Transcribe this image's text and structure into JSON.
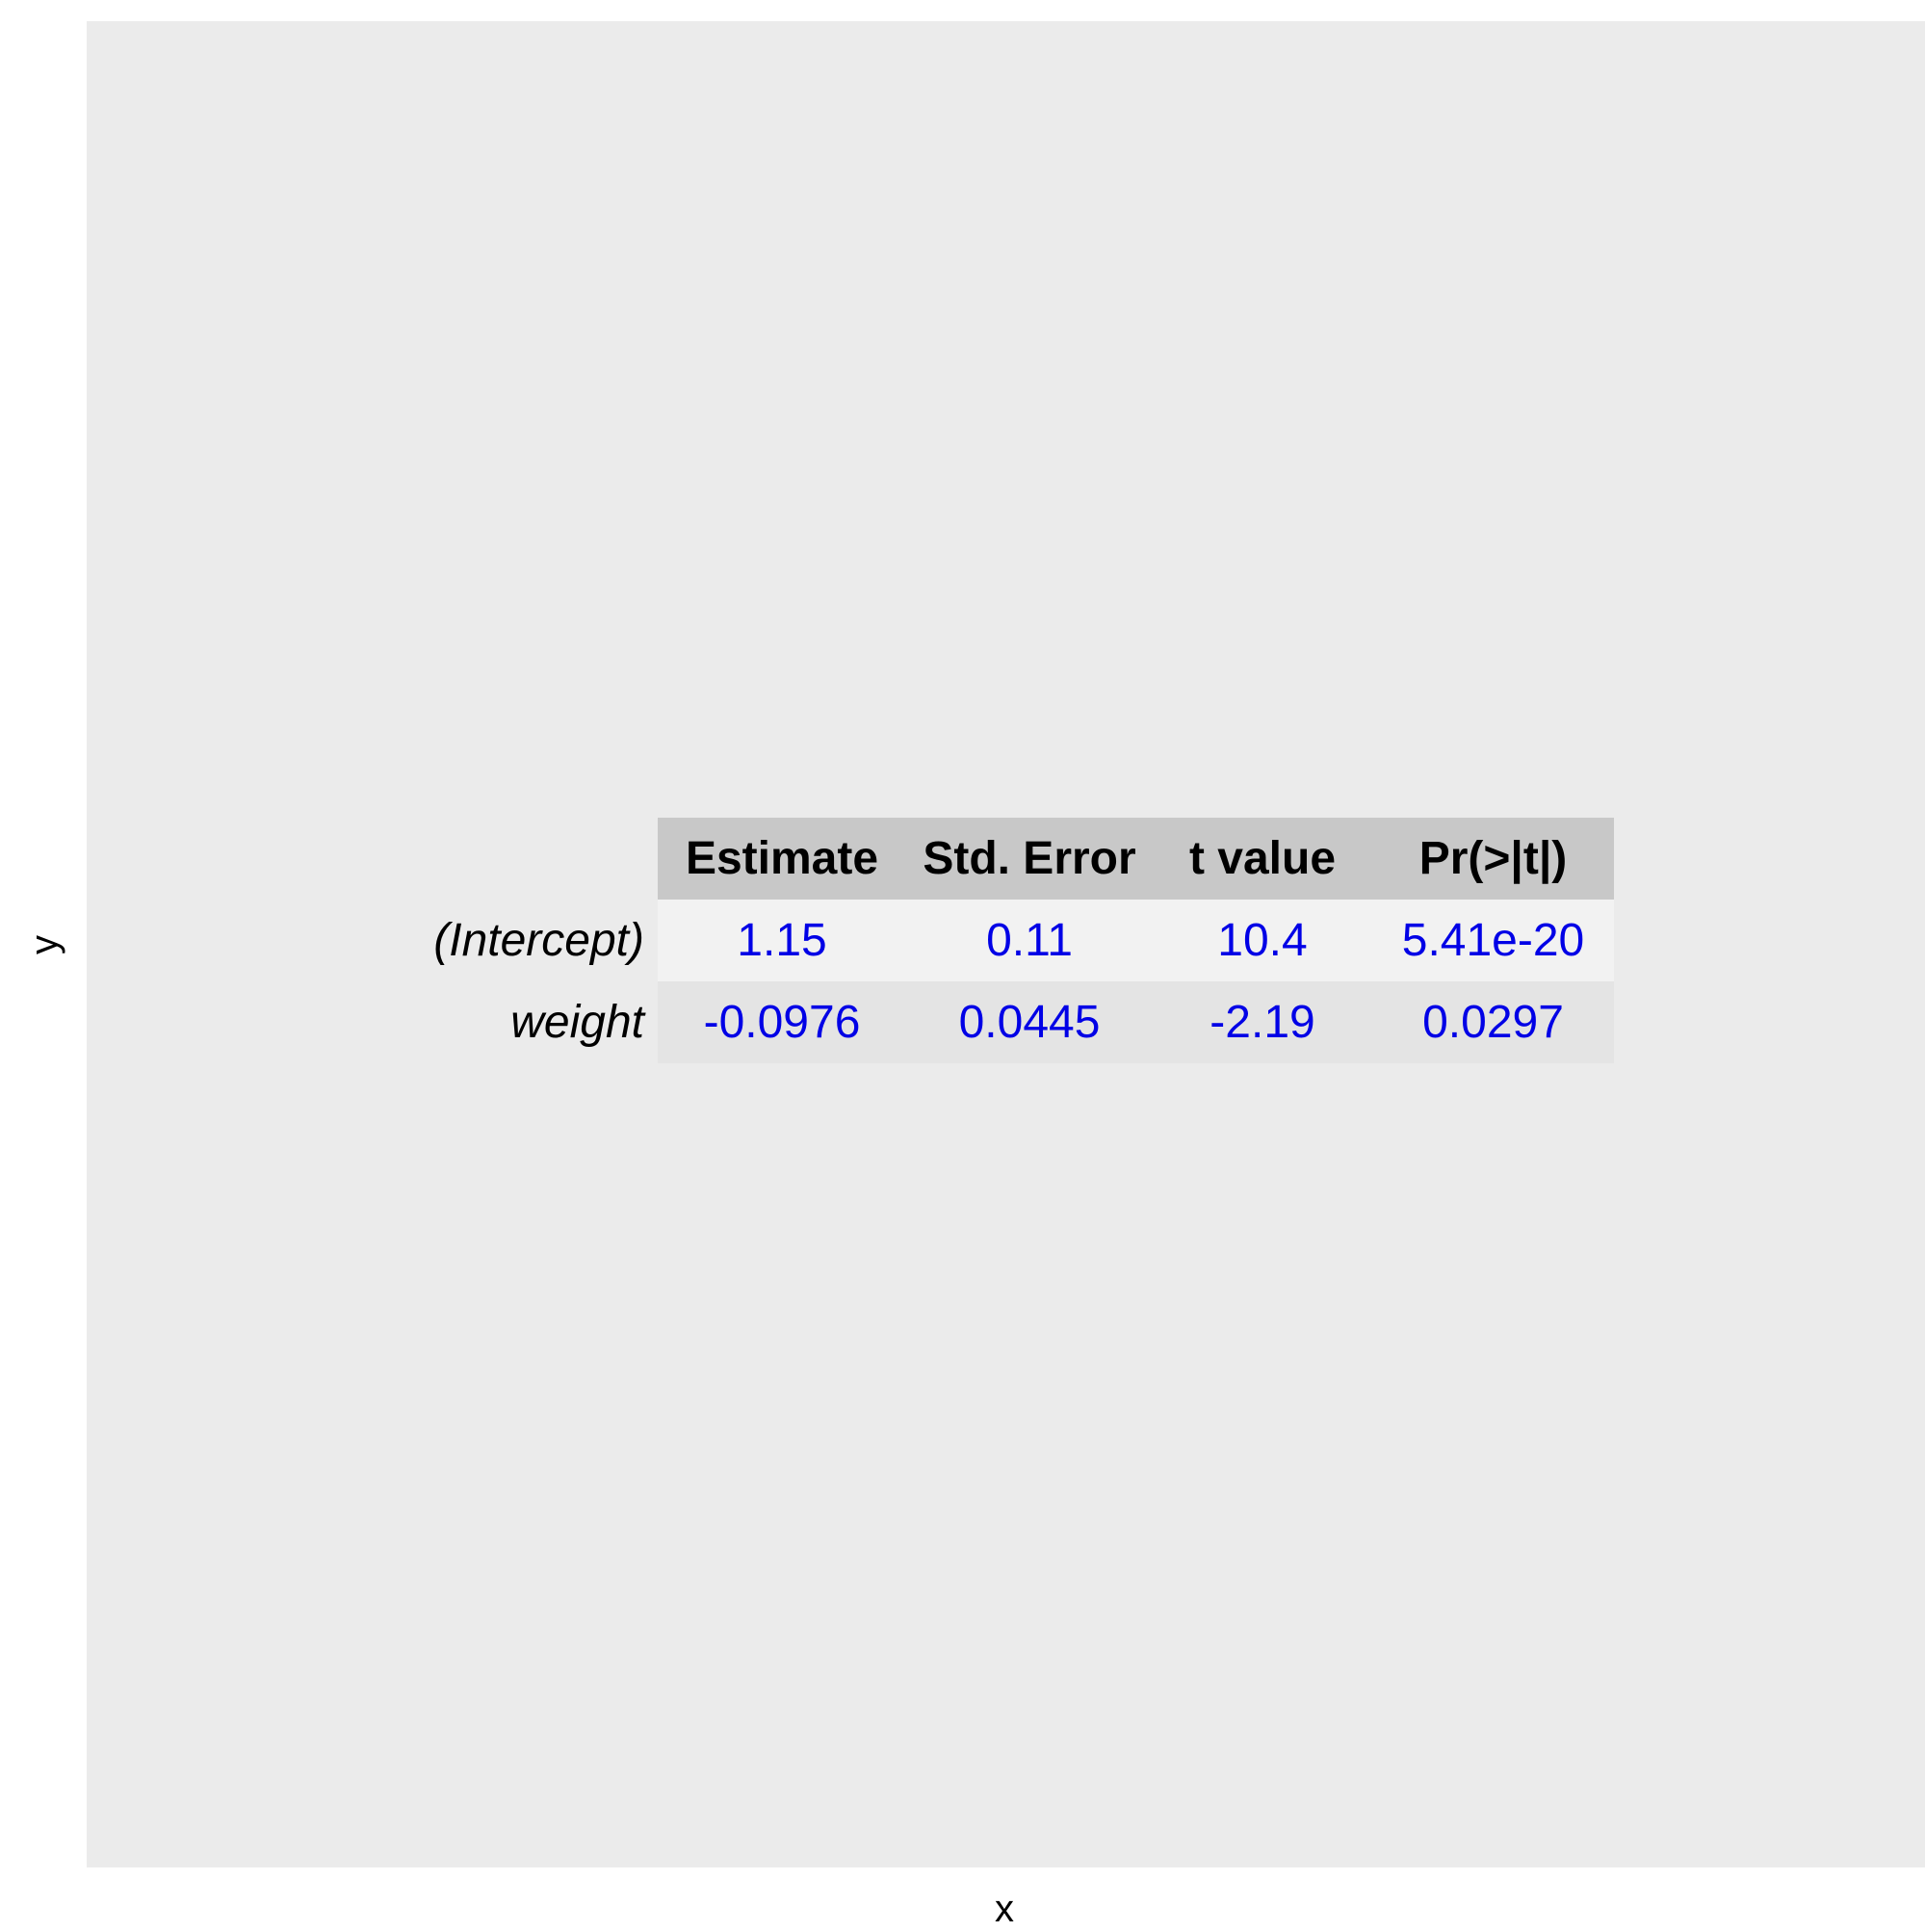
{
  "chart_data": {
    "type": "table",
    "title": "",
    "xlabel": "x",
    "ylabel": "y",
    "columns": [
      "Estimate",
      "Std. Error",
      "t value",
      "Pr(>|t|)"
    ],
    "rows": [
      {
        "label": "(Intercept)",
        "values": [
          "1.15",
          "0.11",
          "10.4",
          "5.41e-20"
        ]
      },
      {
        "label": "weight",
        "values": [
          "-0.0976",
          "0.0445",
          "-2.19",
          "0.0297"
        ]
      }
    ]
  },
  "colors": {
    "panel_background": "#ebebeb",
    "header_background": "#c8c8c8",
    "row_odd_background": "#f2f2f2",
    "row_even_background": "#e4e4e4",
    "value_text": "#0000e6",
    "label_text": "#000000"
  }
}
